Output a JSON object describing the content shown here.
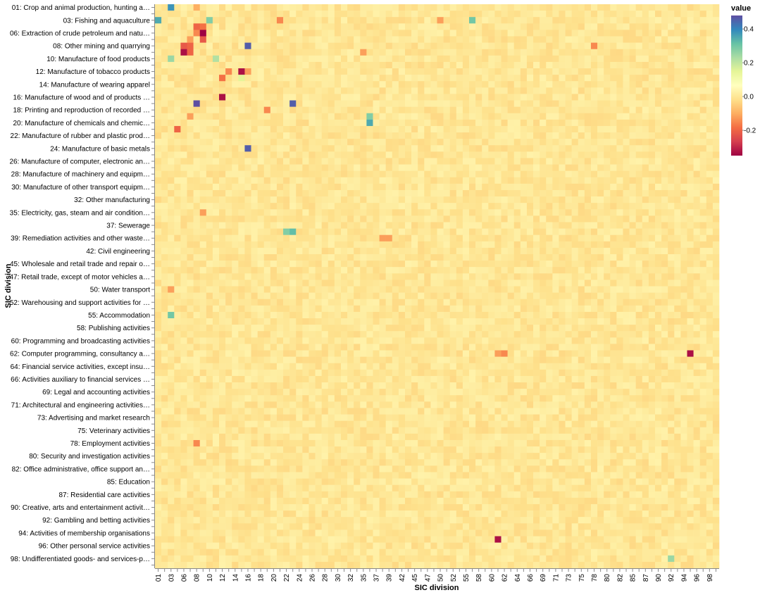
{
  "chart_data": {
    "type": "heatmap",
    "xlabel": "SIC division",
    "ylabel": "SIC division",
    "legend_title": "value",
    "legend_placement": "right",
    "color_scheme": "spectral",
    "color_domain": [
      -0.35,
      0.48
    ],
    "colors": [
      "#9e0142",
      "#d53e4f",
      "#f46d43",
      "#fdae61",
      "#fee08b",
      "#ffffbf",
      "#e6f598",
      "#abdda4",
      "#66c2a5",
      "#3288bd",
      "#5e4fa2"
    ],
    "legend_ticks": [
      0.4,
      0.2,
      0.0,
      -0.2
    ],
    "legend_tick_labels": [
      "0.4",
      "0.2",
      "0.0",
      "-0.2"
    ],
    "x_categories": [
      "01",
      "02",
      "03",
      "05",
      "06",
      "07",
      "08",
      "09",
      "10",
      "11",
      "12",
      "13",
      "14",
      "15",
      "16",
      "17",
      "18",
      "19",
      "20",
      "21",
      "22",
      "23",
      "24",
      "25",
      "26",
      "27",
      "28",
      "29",
      "30",
      "31",
      "32",
      "33",
      "35",
      "36",
      "37",
      "38",
      "39",
      "41",
      "42",
      "43",
      "45",
      "46",
      "47",
      "49",
      "50",
      "51",
      "52",
      "53",
      "55",
      "56",
      "58",
      "59",
      "60",
      "61",
      "62",
      "63",
      "64",
      "65",
      "66",
      "68",
      "69",
      "70",
      "71",
      "72",
      "73",
      "74",
      "75",
      "77",
      "78",
      "79",
      "80",
      "81",
      "82",
      "84",
      "85",
      "86",
      "87",
      "88",
      "90",
      "91",
      "92",
      "93",
      "94",
      "95",
      "96",
      "97",
      "98",
      "99"
    ],
    "x_tick_labels": [
      "01",
      "03",
      "06",
      "08",
      "10",
      "12",
      "14",
      "16",
      "18",
      "20",
      "22",
      "24",
      "26",
      "28",
      "30",
      "32",
      "35",
      "37",
      "39",
      "42",
      "45",
      "47",
      "50",
      "52",
      "55",
      "58",
      "60",
      "62",
      "64",
      "66",
      "69",
      "71",
      "73",
      "75",
      "78",
      "80",
      "82",
      "85",
      "87",
      "90",
      "92",
      "94",
      "96",
      "98"
    ],
    "y_tick_labels": [
      "01: Crop and animal production, hunting a…",
      "03: Fishing and aquaculture",
      "06: Extraction of crude petroleum and natu…",
      "08: Other mining and quarrying",
      "10: Manufacture of food products",
      "12: Manufacture of tobacco products",
      "14: Manufacture of wearing apparel",
      "16: Manufacture of wood and of products …",
      "18: Printing and reproduction of recorded …",
      "20: Manufacture of chemicals and chemic…",
      "22: Manufacture of rubber and plastic prod…",
      "24: Manufacture of basic metals",
      "26: Manufacture of computer, electronic an…",
      "28: Manufacture of machinery and equipm…",
      "30: Manufacture of other transport equipm…",
      "32: Other manufacturing",
      "35: Electricity, gas, steam and air condition…",
      "37: Sewerage",
      "39: Remediation activities and other waste…",
      "42: Civil engineering",
      "45: Wholesale and retail trade and repair o…",
      "47: Retail trade, except of motor vehicles a…",
      "50: Water transport",
      "52: Warehousing and support activities for …",
      "55: Accommodation",
      "58: Publishing activities",
      "60: Programming and broadcasting activities",
      "62: Computer programming, consultancy a…",
      "64: Financial service activities, except insu…",
      "66: Activities auxiliary to financial services …",
      "69: Legal and accounting activities",
      "71: Architectural and engineering activities…",
      "73: Advertising and market research",
      "75: Veterinary activities",
      "78: Employment activities",
      "80: Security and investigation activities",
      "82: Office administrative, office support an…",
      "85: Education",
      "87: Residential care activities",
      "90: Creative, arts and entertainment activit…",
      "92: Gambling and betting activities",
      "94: Activities of membership organisations",
      "96: Other personal service activities",
      "98: Undifferentiated goods- and services-p…"
    ],
    "y_row_count": 88,
    "baseline_value": 0.0,
    "notable_cells": [
      {
        "x": "03",
        "y": "01",
        "value": 0.38
      },
      {
        "x": "08",
        "y": "01",
        "value": -0.1
      },
      {
        "x": "01",
        "y": "03",
        "value": 0.35
      },
      {
        "x": "10",
        "y": "03",
        "value": 0.28
      },
      {
        "x": "21",
        "y": "03",
        "value": -0.15
      },
      {
        "x": "50",
        "y": "03",
        "value": -0.12
      },
      {
        "x": "56",
        "y": "03",
        "value": 0.3
      },
      {
        "x": "08",
        "y": "05",
        "value": -0.2
      },
      {
        "x": "09",
        "y": "05",
        "value": -0.18
      },
      {
        "x": "08",
        "y": "06",
        "value": -0.15
      },
      {
        "x": "09",
        "y": "06",
        "value": -0.35
      },
      {
        "x": "07",
        "y": "07",
        "value": -0.12
      },
      {
        "x": "09",
        "y": "07",
        "value": -0.22
      },
      {
        "x": "06",
        "y": "08",
        "value": -0.22
      },
      {
        "x": "07",
        "y": "08",
        "value": -0.2
      },
      {
        "x": "16",
        "y": "08",
        "value": 0.46
      },
      {
        "x": "78",
        "y": "08",
        "value": -0.15
      },
      {
        "x": "06",
        "y": "09",
        "value": -0.33
      },
      {
        "x": "07",
        "y": "09",
        "value": -0.2
      },
      {
        "x": "35",
        "y": "09",
        "value": -0.12
      },
      {
        "x": "03",
        "y": "10",
        "value": 0.25
      },
      {
        "x": "11",
        "y": "10",
        "value": 0.22
      },
      {
        "x": "13",
        "y": "12",
        "value": -0.15
      },
      {
        "x": "15",
        "y": "12",
        "value": -0.33
      },
      {
        "x": "16",
        "y": "12",
        "value": -0.12
      },
      {
        "x": "12",
        "y": "13",
        "value": -0.18
      },
      {
        "x": "15",
        "y": "13",
        "value": 0.15
      },
      {
        "x": "12",
        "y": "16",
        "value": -0.33
      },
      {
        "x": "08",
        "y": "17",
        "value": 0.48
      },
      {
        "x": "23",
        "y": "17",
        "value": 0.46
      },
      {
        "x": "19",
        "y": "18",
        "value": -0.15
      },
      {
        "x": "07",
        "y": "19",
        "value": -0.12
      },
      {
        "x": "36",
        "y": "19",
        "value": 0.28
      },
      {
        "x": "36",
        "y": "20",
        "value": 0.35
      },
      {
        "x": "05",
        "y": "21",
        "value": -0.2
      },
      {
        "x": "16",
        "y": "24",
        "value": 0.46
      },
      {
        "x": "09",
        "y": "35",
        "value": -0.12
      },
      {
        "x": "22",
        "y": "38",
        "value": 0.28
      },
      {
        "x": "23",
        "y": "38",
        "value": 0.32
      },
      {
        "x": "38",
        "y": "39",
        "value": -0.12
      },
      {
        "x": "39",
        "y": "39",
        "value": -0.12
      },
      {
        "x": "03",
        "y": "50",
        "value": -0.12
      },
      {
        "x": "03",
        "y": "55",
        "value": 0.3
      },
      {
        "x": "61",
        "y": "62",
        "value": -0.12
      },
      {
        "x": "62",
        "y": "62",
        "value": -0.15
      },
      {
        "x": "95",
        "y": "62",
        "value": -0.33
      },
      {
        "x": "08",
        "y": "78",
        "value": -0.15
      },
      {
        "x": "61",
        "y": "95",
        "value": -0.33
      },
      {
        "x": "92",
        "y": "98",
        "value": 0.25
      }
    ]
  }
}
